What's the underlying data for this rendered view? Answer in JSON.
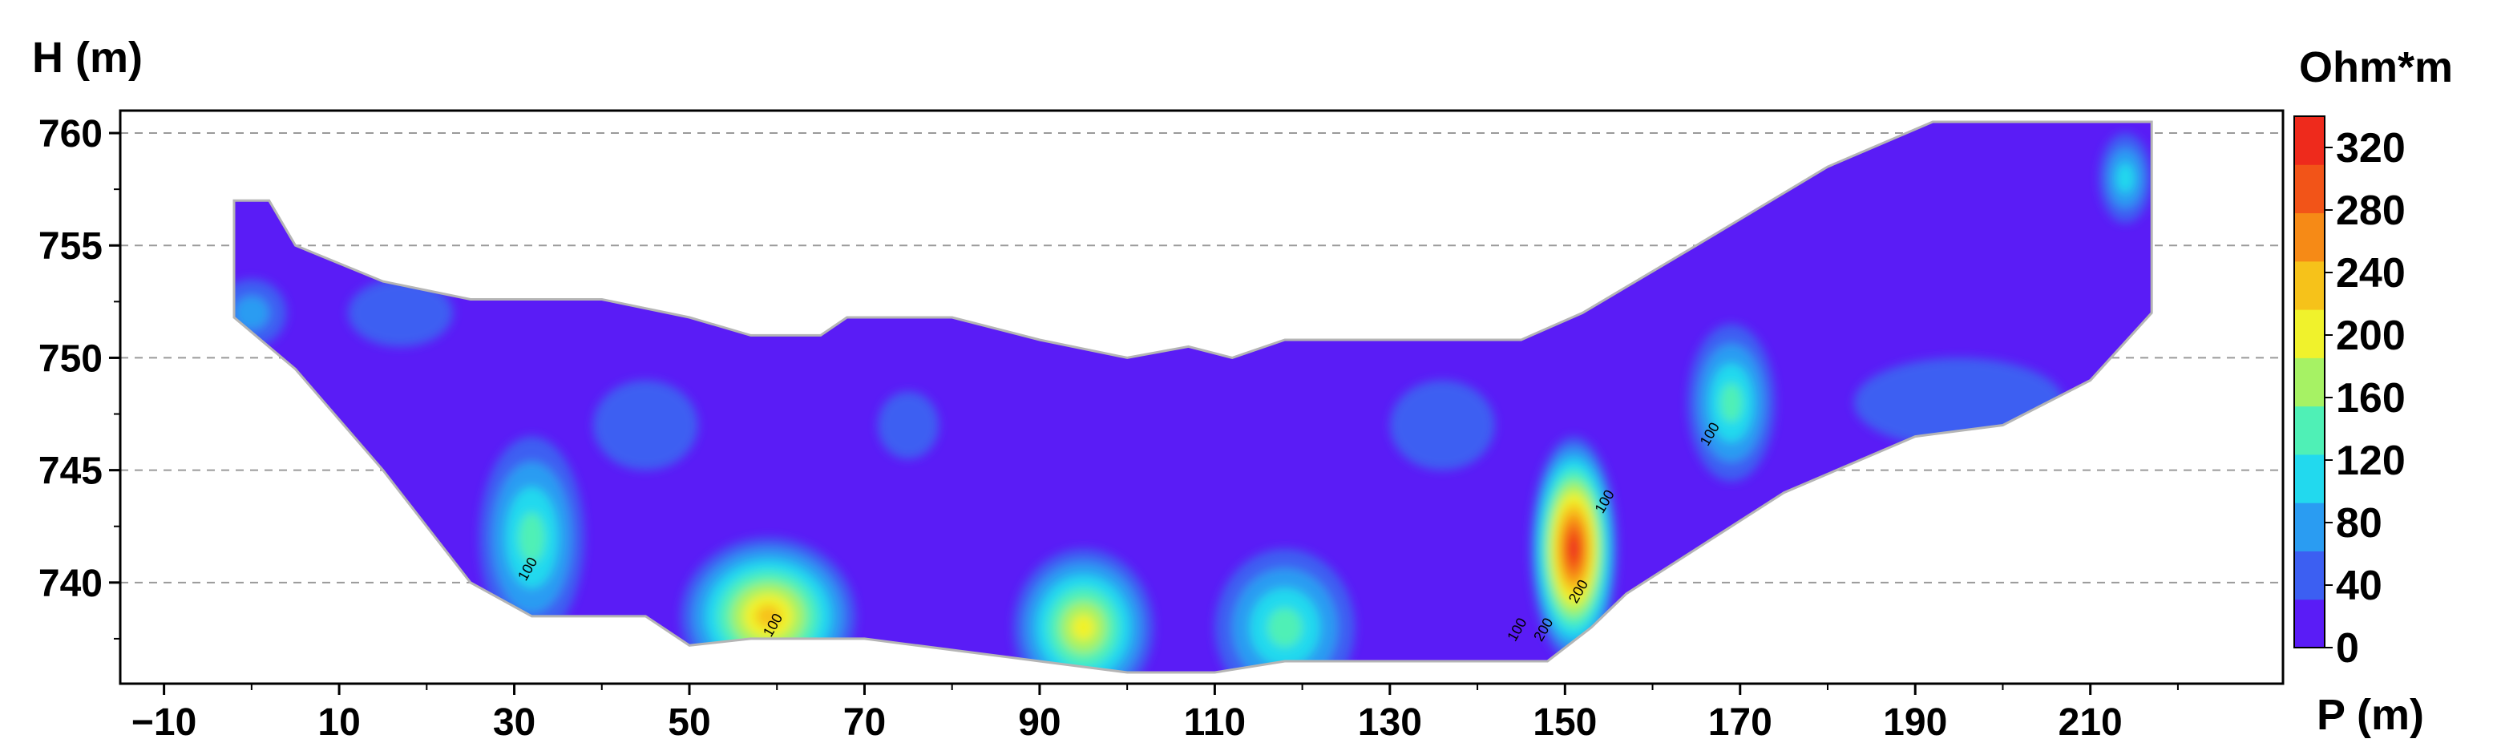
{
  "chart_data": {
    "type": "heatmap",
    "title": "",
    "xlabel": "P (m)",
    "ylabel": "H (m)",
    "xlim": [
      -15,
      232
    ],
    "ylim": [
      735.5,
      761
    ],
    "x_ticks": [
      -10,
      10,
      30,
      50,
      70,
      90,
      110,
      130,
      150,
      170,
      190,
      210
    ],
    "y_ticks": [
      740,
      745,
      750,
      755,
      760
    ],
    "grid": "horizontal dashed",
    "colorbar": {
      "title": "Ohm*m",
      "ticks": [
        0,
        40,
        80,
        120,
        160,
        200,
        240,
        280,
        320
      ],
      "range": [
        0,
        340
      ],
      "colors": [
        "#5a1cf6",
        "#3c5ff2",
        "#2a9cf2",
        "#22d9ee",
        "#4ff0b6",
        "#a6f264",
        "#f0f22c",
        "#f6c21a",
        "#f68a16",
        "#f25418",
        "#ee2a1c"
      ]
    },
    "section_outline": [
      [
        -2,
        757
      ],
      [
        2,
        757
      ],
      [
        5,
        755
      ],
      [
        15,
        753.4
      ],
      [
        25,
        752.6
      ],
      [
        40,
        752.6
      ],
      [
        50,
        751.8
      ],
      [
        57,
        751
      ],
      [
        65,
        751
      ],
      [
        68,
        751.8
      ],
      [
        80,
        751.8
      ],
      [
        90,
        750.8
      ],
      [
        100,
        750
      ],
      [
        107,
        750.5
      ],
      [
        112,
        750
      ],
      [
        118,
        750.8
      ],
      [
        145,
        750.8
      ],
      [
        152,
        752
      ],
      [
        165,
        755
      ],
      [
        180,
        758.5
      ],
      [
        192,
        760.5
      ],
      [
        217,
        760.5
      ],
      [
        217,
        756
      ],
      [
        217,
        752
      ],
      [
        210,
        749
      ],
      [
        200,
        747
      ],
      [
        190,
        746.5
      ],
      [
        175,
        744
      ],
      [
        165,
        741.5
      ],
      [
        157,
        739.5
      ],
      [
        153,
        738
      ],
      [
        148,
        736.5
      ],
      [
        138,
        736.5
      ],
      [
        118,
        736.5
      ],
      [
        110,
        736
      ],
      [
        100,
        736
      ],
      [
        90,
        736.5
      ],
      [
        70,
        737.5
      ],
      [
        57,
        737.5
      ],
      [
        50,
        737.2
      ],
      [
        45,
        738.5
      ],
      [
        32,
        738.5
      ],
      [
        25,
        740
      ],
      [
        15,
        745
      ],
      [
        5,
        749.5
      ],
      [
        -2,
        751.8
      ]
    ],
    "anomalies": [
      {
        "x": 32,
        "y": 742,
        "rx": 6,
        "ry": 4.5,
        "peak": 150
      },
      {
        "x": 59,
        "y": 738.5,
        "rx": 10,
        "ry": 3.5,
        "peak": 230
      },
      {
        "x": 95,
        "y": 738,
        "rx": 8,
        "ry": 3.5,
        "peak": 220
      },
      {
        "x": 118,
        "y": 738,
        "rx": 8,
        "ry": 3.5,
        "peak": 150
      },
      {
        "x": 151,
        "y": 741.5,
        "rx": 5,
        "ry": 5,
        "peak": 340
      },
      {
        "x": 169,
        "y": 748,
        "rx": 5,
        "ry": 3.5,
        "peak": 150
      },
      {
        "x": 214,
        "y": 758,
        "rx": 3,
        "ry": 2,
        "peak": 100
      },
      {
        "x": 17,
        "y": 752,
        "rx": 6,
        "ry": 1.5,
        "peak": 45
      },
      {
        "x": 45,
        "y": 747,
        "rx": 6,
        "ry": 2,
        "peak": 50
      },
      {
        "x": 75,
        "y": 747,
        "rx": 3.5,
        "ry": 1.5,
        "peak": 45
      },
      {
        "x": 136,
        "y": 747,
        "rx": 6,
        "ry": 2,
        "peak": 40
      },
      {
        "x": 195,
        "y": 748,
        "rx": 12,
        "ry": 2,
        "peak": 40
      },
      {
        "x": 0,
        "y": 752,
        "rx": 4,
        "ry": 1.5,
        "peak": 60
      }
    ],
    "contour_labels": [
      {
        "x": 32,
        "y": 740.5,
        "text": "100"
      },
      {
        "x": 60,
        "y": 738,
        "text": "100"
      },
      {
        "x": 145,
        "y": 737.8,
        "text": "100"
      },
      {
        "x": 148,
        "y": 737.8,
        "text": "200"
      },
      {
        "x": 152,
        "y": 739.5,
        "text": "200"
      },
      {
        "x": 155,
        "y": 743.5,
        "text": "100"
      },
      {
        "x": 167,
        "y": 746.5,
        "text": "100"
      }
    ]
  }
}
